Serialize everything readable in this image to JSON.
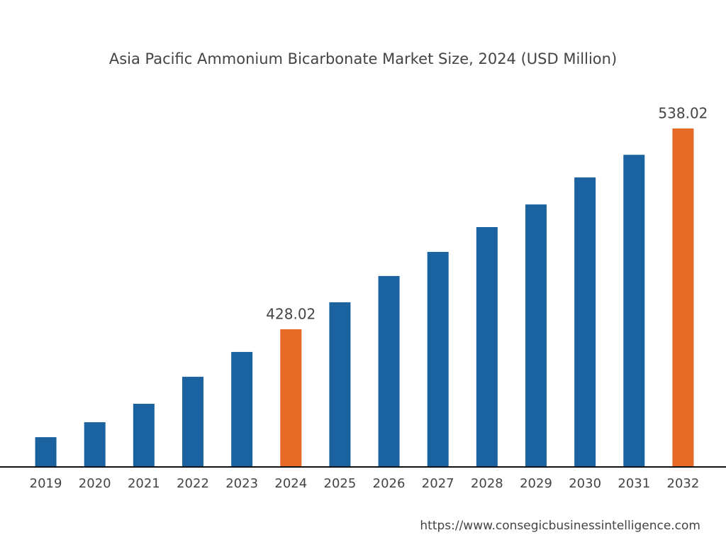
{
  "chart_data": {
    "type": "bar",
    "title": "Asia Pacific Ammonium Bicarbonate Market Size, 2024 (USD Million)",
    "categories": [
      "2019",
      "2020",
      "2021",
      "2022",
      "2023",
      "2024",
      "2025",
      "2026",
      "2027",
      "2028",
      "2029",
      "2030",
      "2031",
      "2032"
    ],
    "values": [
      368.9,
      377.1,
      387.2,
      402.0,
      415.6,
      428.02,
      442.8,
      457.2,
      470.4,
      484.0,
      496.4,
      511.2,
      523.6,
      538.02
    ],
    "value_labels": [
      null,
      null,
      null,
      null,
      null,
      "428.02",
      null,
      null,
      null,
      null,
      null,
      null,
      null,
      "538.02"
    ],
    "colors": [
      "#1a63a0",
      "#1a63a0",
      "#1a63a0",
      "#1a63a0",
      "#1a63a0",
      "#e46a25",
      "#1a63a0",
      "#1a63a0",
      "#1a63a0",
      "#1a63a0",
      "#1a63a0",
      "#1a63a0",
      "#1a63a0",
      "#e46a25"
    ],
    "ylim": [
      352.6,
      560
    ],
    "source": "https://www.consegicbusinessintelligence.com"
  }
}
